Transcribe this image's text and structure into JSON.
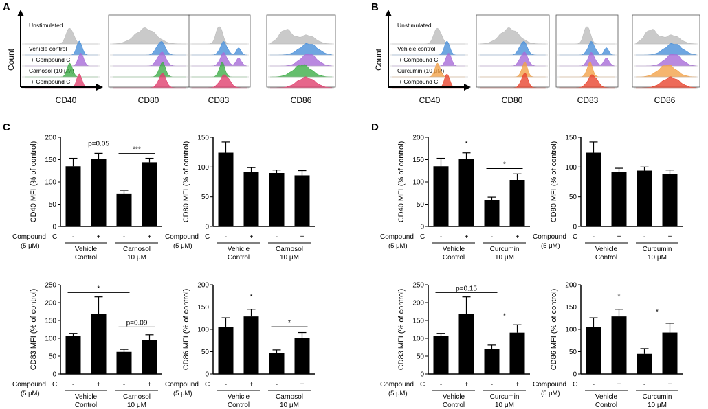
{
  "panels": {
    "A": "A",
    "B": "B",
    "C": "C",
    "D": "D"
  },
  "flow": {
    "count_label": "Count",
    "markers": [
      "CD40",
      "CD80",
      "CD83",
      "CD86"
    ],
    "A": {
      "rows": [
        "Unstimulated",
        "Vehicle control",
        "+ Compound C",
        "Carnosol (10 μM)",
        "+ Compound C"
      ]
    },
    "B": {
      "rows": [
        "Unstimulated",
        "Vehicle control",
        "+ Compound C",
        "Curcumin (10 μM)",
        "+ Compound C"
      ]
    },
    "colors": {
      "A": [
        "#bdbdbd",
        "#4a90d9",
        "#a86cd8",
        "#3fae48",
        "#e0406e"
      ],
      "B": [
        "#bdbdbd",
        "#4a90d9",
        "#a86cd8",
        "#f2a24a",
        "#e8452e"
      ]
    }
  },
  "labels": {
    "compound_line1": "Compound",
    "compound_c": "C",
    "compound_line2": "(5 μM)",
    "minus": "-",
    "plus": "+",
    "vehicle_line1": "Vehicle",
    "vehicle_line2": "Control",
    "dose": "10 μM",
    "carnosol": "Carnosol",
    "curcumin": "Curcumin"
  },
  "chart_data": [
    {
      "id": "C1",
      "type": "bar",
      "ylabel": "CD40 MFI (% of control)",
      "ylim": [
        0,
        200
      ],
      "yticks": [
        0,
        50,
        100,
        150,
        200
      ],
      "categories": [
        "Vehicle -",
        "Vehicle +",
        "Carnosol -",
        "Carnosol +"
      ],
      "values": [
        135,
        151,
        74,
        144
      ],
      "errors": [
        18,
        13,
        6,
        9
      ],
      "group2": "Carnosol",
      "annotations": [
        {
          "from": 0,
          "to": 2,
          "y": 176,
          "text": "p=0.05"
        },
        {
          "from": 2,
          "to": 3,
          "y": 164,
          "text": "***"
        }
      ]
    },
    {
      "id": "C2",
      "type": "bar",
      "ylabel": "CD80 MFI (% of control)",
      "ylim": [
        0,
        150
      ],
      "yticks": [
        0,
        50,
        100,
        150
      ],
      "categories": [
        "Vehicle -",
        "Vehicle +",
        "Carnosol -",
        "Carnosol +"
      ],
      "values": [
        124,
        92,
        90,
        86
      ],
      "errors": [
        18,
        7,
        5,
        8
      ],
      "group2": "Carnosol",
      "annotations": []
    },
    {
      "id": "C3",
      "type": "bar",
      "ylabel": "CD83 MFI (% of control)",
      "ylim": [
        0,
        250
      ],
      "yticks": [
        0,
        50,
        100,
        150,
        200,
        250
      ],
      "categories": [
        "Vehicle -",
        "Vehicle +",
        "Carnosol -",
        "Carnosol +"
      ],
      "values": [
        106,
        169,
        62,
        95
      ],
      "errors": [
        8,
        47,
        7,
        15
      ],
      "group2": "Carnosol",
      "annotations": [
        {
          "from": 0,
          "to": 2,
          "y": 228,
          "text": "*"
        },
        {
          "from": 2,
          "to": 3,
          "y": 132,
          "text": "p=0.09"
        }
      ]
    },
    {
      "id": "C4",
      "type": "bar",
      "ylabel": "CD86 MFI (% of control)",
      "ylim": [
        0,
        200
      ],
      "yticks": [
        0,
        50,
        100,
        150,
        200
      ],
      "categories": [
        "Vehicle -",
        "Vehicle +",
        "Carnosol -",
        "Carnosol +"
      ],
      "values": [
        106,
        129,
        47,
        81
      ],
      "errors": [
        20,
        16,
        7,
        12
      ],
      "group2": "Carnosol",
      "annotations": [
        {
          "from": 0,
          "to": 2,
          "y": 164,
          "text": "*"
        },
        {
          "from": 2,
          "to": 3,
          "y": 106,
          "text": "*"
        }
      ]
    },
    {
      "id": "D1",
      "type": "bar",
      "ylabel": "CD40 MFI (% of control)",
      "ylim": [
        0,
        200
      ],
      "yticks": [
        0,
        50,
        100,
        150,
        200
      ],
      "categories": [
        "Vehicle -",
        "Vehicle +",
        "Curcumin -",
        "Curcumin +"
      ],
      "values": [
        135,
        152,
        60,
        104
      ],
      "errors": [
        18,
        13,
        6,
        14
      ],
      "group2": "Curcumin",
      "annotations": [
        {
          "from": 0,
          "to": 2,
          "y": 176,
          "text": "*"
        },
        {
          "from": 2,
          "to": 3,
          "y": 130,
          "text": "*"
        }
      ]
    },
    {
      "id": "D2",
      "type": "bar",
      "ylabel": "CD80 MFI (% of control)",
      "ylim": [
        0,
        150
      ],
      "yticks": [
        0,
        50,
        100,
        150
      ],
      "categories": [
        "Vehicle -",
        "Vehicle +",
        "Curcumin -",
        "Curcumin +"
      ],
      "values": [
        124,
        92,
        94,
        88
      ],
      "errors": [
        18,
        6,
        6,
        7
      ],
      "group2": "Curcumin",
      "annotations": []
    },
    {
      "id": "D3",
      "type": "bar",
      "ylabel": "CD83 MFI (% of control)",
      "ylim": [
        0,
        250
      ],
      "yticks": [
        0,
        50,
        100,
        150,
        200,
        250
      ],
      "categories": [
        "Vehicle -",
        "Vehicle +",
        "Curcumin -",
        "Curcumin +"
      ],
      "values": [
        106,
        169,
        71,
        116
      ],
      "errors": [
        8,
        47,
        10,
        22
      ],
      "group2": "Curcumin",
      "annotations": [
        {
          "from": 0,
          "to": 2,
          "y": 228,
          "text": "p=0.15"
        },
        {
          "from": 2,
          "to": 3,
          "y": 151,
          "text": "*"
        }
      ]
    },
    {
      "id": "D4",
      "type": "bar",
      "ylabel": "CD86 MFI (% of control)",
      "ylim": [
        0,
        200
      ],
      "yticks": [
        0,
        50,
        100,
        150,
        200
      ],
      "categories": [
        "Vehicle -",
        "Vehicle +",
        "Curcumin -",
        "Curcumin +"
      ],
      "values": [
        106,
        129,
        45,
        93
      ],
      "errors": [
        20,
        16,
        12,
        21
      ],
      "group2": "Curcumin",
      "annotations": [
        {
          "from": 0,
          "to": 2,
          "y": 164,
          "text": "*"
        },
        {
          "from": 2,
          "to": 3,
          "y": 130,
          "text": "*"
        }
      ]
    }
  ]
}
